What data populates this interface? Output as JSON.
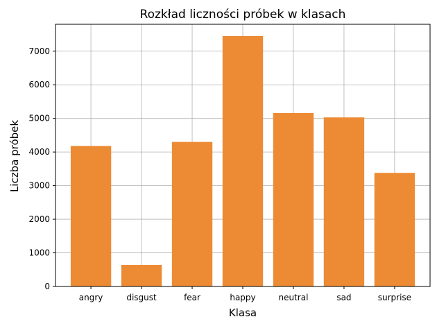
{
  "chart_data": {
    "type": "bar",
    "title": "Rozkład liczności próbek w klasach",
    "xlabel": "Klasa",
    "ylabel": "Liczba próbek",
    "categories": [
      "angry",
      "disgust",
      "fear",
      "happy",
      "neutral",
      "sad",
      "surprise"
    ],
    "values": [
      4180,
      640,
      4300,
      7450,
      5160,
      5030,
      3380
    ],
    "ylim": [
      0,
      7800
    ],
    "yticks": [
      0,
      1000,
      2000,
      3000,
      4000,
      5000,
      6000,
      7000
    ],
    "grid": true,
    "bar_color": "#ed8b35",
    "grid_color": "#b0b0b0"
  }
}
